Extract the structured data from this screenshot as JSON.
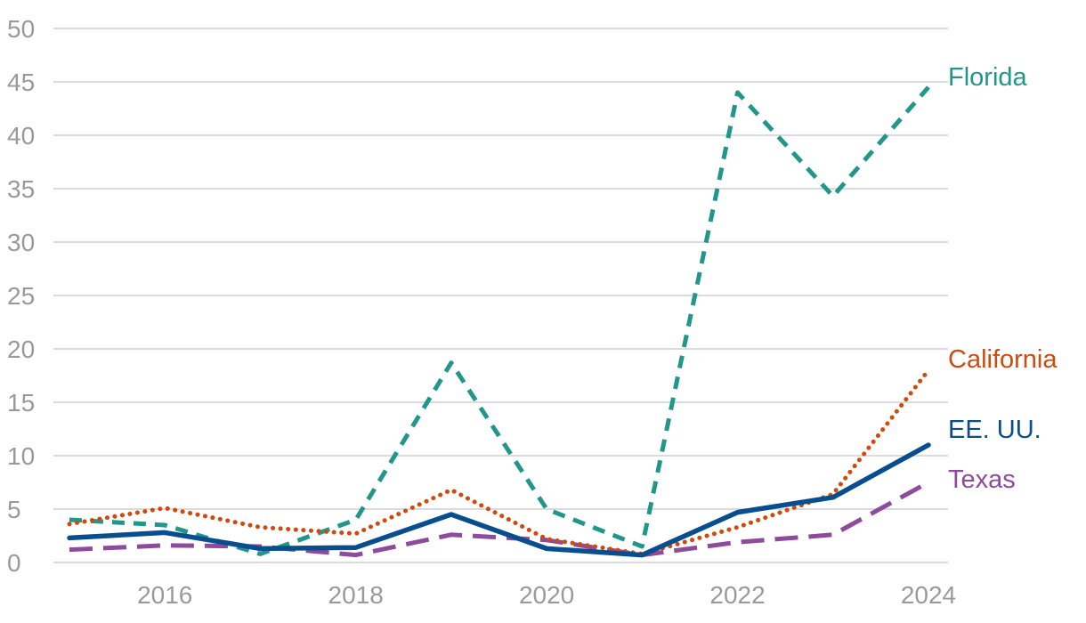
{
  "chart_data": {
    "type": "line",
    "x": [
      2015,
      2016,
      2017,
      2018,
      2019,
      2020,
      2021,
      2022,
      2023,
      2024
    ],
    "x_ticks": [
      "2016",
      "2018",
      "2020",
      "2022",
      "2024"
    ],
    "y_ticks": [
      "0",
      "5",
      "10",
      "15",
      "20",
      "25",
      "30",
      "35",
      "40",
      "45",
      "50"
    ],
    "xlim": [
      2015,
      2024
    ],
    "ylim": [
      0,
      50
    ],
    "grid": true,
    "legend": "direct labels at line ends (right side)",
    "title": "",
    "xlabel": "",
    "ylabel": "",
    "series": [
      {
        "name": "Florida",
        "style": "dashed",
        "color": "#21978b",
        "values": [
          4.0,
          3.5,
          0.8,
          4.0,
          18.7,
          5.0,
          1.5,
          44.0,
          34.3,
          44.5
        ]
      },
      {
        "name": "California",
        "style": "dotted",
        "color": "#d04a0e",
        "values": [
          3.6,
          5.1,
          3.3,
          2.7,
          6.8,
          2.2,
          0.8,
          3.3,
          6.4,
          18.0
        ]
      },
      {
        "name": "EE. UU.",
        "style": "solid",
        "color": "#084d8d",
        "values": [
          2.3,
          2.8,
          1.3,
          1.4,
          4.5,
          1.3,
          0.7,
          4.7,
          6.1,
          11.0
        ]
      },
      {
        "name": "Texas",
        "style": "long-dashed",
        "color": "#8e4b9d",
        "values": [
          1.2,
          1.6,
          1.5,
          0.7,
          2.6,
          2.1,
          0.7,
          1.9,
          2.6,
          7.5
        ]
      }
    ]
  }
}
